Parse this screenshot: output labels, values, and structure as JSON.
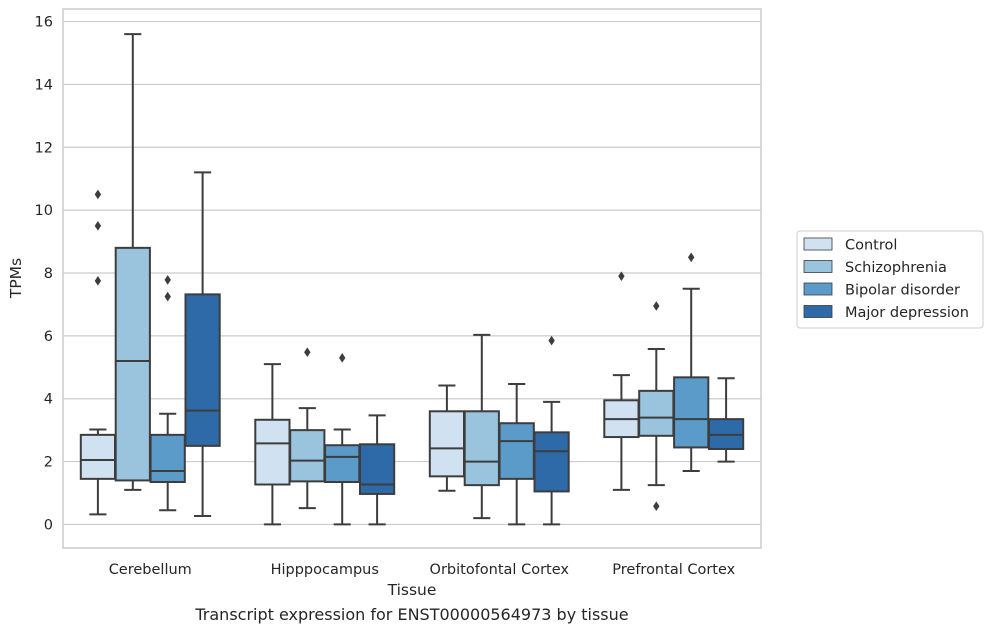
{
  "chart_data": {
    "type": "boxplot",
    "xlabel": "Tissue",
    "ylabel": "TPMs",
    "ylim": [
      -0.75,
      16.4
    ],
    "yticks": [
      0,
      2,
      4,
      6,
      8,
      10,
      12,
      14,
      16
    ],
    "grid": "horizontal",
    "legend_position": "right",
    "categories": [
      "Cerebellum",
      "Hipppocampus",
      "Orbitofontal Cortex",
      "Prefrontal Cortex"
    ],
    "series": [
      {
        "name": "Control",
        "color": "#d0e1f2",
        "boxes": [
          {
            "whislo": 0.32,
            "q1": 1.45,
            "med": 2.05,
            "q3": 2.85,
            "whishi": 3.02,
            "fliers": [
              7.75,
              9.5,
              10.5
            ]
          },
          {
            "whislo": 0.0,
            "q1": 1.27,
            "med": 2.58,
            "q3": 3.33,
            "whishi": 5.1,
            "fliers": []
          },
          {
            "whislo": 1.07,
            "q1": 1.53,
            "med": 2.42,
            "q3": 3.6,
            "whishi": 4.42,
            "fliers": []
          },
          {
            "whislo": 1.1,
            "q1": 2.78,
            "med": 3.35,
            "q3": 3.95,
            "whishi": 4.75,
            "fliers": [
              7.9
            ]
          }
        ]
      },
      {
        "name": "Schizophrenia",
        "color": "#9ac3dd",
        "boxes": [
          {
            "whislo": 1.1,
            "q1": 1.4,
            "med": 5.2,
            "q3": 8.8,
            "whishi": 15.6,
            "fliers": []
          },
          {
            "whislo": 0.52,
            "q1": 1.37,
            "med": 2.03,
            "q3": 3.0,
            "whishi": 3.7,
            "fliers": [
              5.48
            ]
          },
          {
            "whislo": 0.2,
            "q1": 1.25,
            "med": 2.0,
            "q3": 3.6,
            "whishi": 6.03,
            "fliers": []
          },
          {
            "whislo": 1.25,
            "q1": 2.82,
            "med": 3.4,
            "q3": 4.25,
            "whishi": 5.58,
            "fliers": [
              0.58,
              6.95
            ]
          }
        ]
      },
      {
        "name": "Bipolar disorder",
        "color": "#5b9bc9",
        "boxes": [
          {
            "whislo": 0.45,
            "q1": 1.35,
            "med": 1.7,
            "q3": 2.85,
            "whishi": 3.52,
            "fliers": [
              7.25,
              7.78
            ]
          },
          {
            "whislo": 0.0,
            "q1": 1.35,
            "med": 2.15,
            "q3": 2.52,
            "whishi": 3.02,
            "fliers": [
              5.3
            ]
          },
          {
            "whislo": 0.0,
            "q1": 1.45,
            "med": 2.65,
            "q3": 3.22,
            "whishi": 4.47,
            "fliers": []
          },
          {
            "whislo": 1.7,
            "q1": 2.45,
            "med": 3.35,
            "q3": 4.68,
            "whishi": 7.5,
            "fliers": [
              8.5
            ]
          }
        ]
      },
      {
        "name": "Major depression",
        "color": "#2e6aa8",
        "boxes": [
          {
            "whislo": 0.27,
            "q1": 2.5,
            "med": 3.62,
            "q3": 7.32,
            "whishi": 11.2,
            "fliers": []
          },
          {
            "whislo": 0.0,
            "q1": 0.97,
            "med": 1.27,
            "q3": 2.55,
            "whishi": 3.47,
            "fliers": []
          },
          {
            "whislo": 0.0,
            "q1": 1.05,
            "med": 2.33,
            "q3": 2.93,
            "whishi": 3.9,
            "fliers": [
              5.85
            ]
          },
          {
            "whislo": 2.0,
            "q1": 2.4,
            "med": 2.85,
            "q3": 3.35,
            "whishi": 4.65,
            "fliers": []
          }
        ]
      }
    ]
  },
  "caption": "Transcript expression for ENST00000564973 by tissue"
}
